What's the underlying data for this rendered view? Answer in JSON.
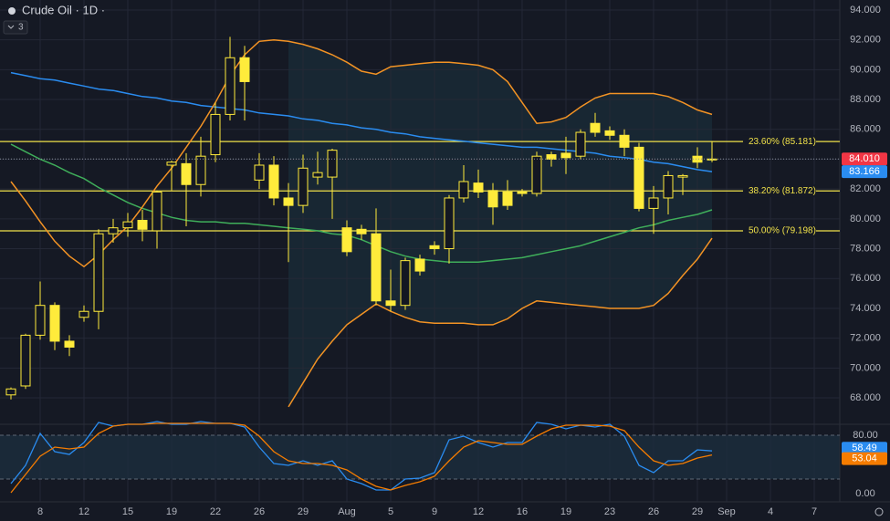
{
  "chart_data": [
    {
      "type": "candlestick",
      "title": "Crude Oil · 1D ·",
      "indicator_count": "3",
      "open": [
        68.2,
        68.8,
        72.2,
        74.2,
        71.8,
        73.4,
        73.8,
        79.0,
        79.4,
        79.9,
        79.2,
        83.6,
        83.7,
        82.3,
        84.3,
        87.0,
        90.8,
        82.6,
        83.6,
        81.4,
        80.9,
        82.8,
        82.8,
        79.4,
        79.3,
        79.0,
        74.5,
        74.2,
        77.3,
        78.2,
        78.0,
        81.4,
        82.4,
        81.9,
        81.8,
        81.8,
        81.7,
        84.3,
        84.4,
        84.2,
        86.4,
        85.9,
        85.6,
        84.8,
        80.7,
        81.4,
        82.8,
        84.2,
        84.0
      ],
      "high": [
        68.7,
        72.3,
        75.8,
        74.4,
        72.2,
        74.2,
        79.3,
        80.0,
        80.4,
        80.6,
        81.9,
        83.9,
        84.4,
        85.5,
        87.8,
        92.2,
        91.6,
        84.4,
        84.2,
        82.4,
        84.3,
        84.5,
        84.7,
        79.9,
        79.6,
        80.7,
        76.6,
        77.4,
        77.6,
        78.5,
        81.6,
        83.6,
        83.3,
        82.4,
        82.6,
        82.0,
        84.5,
        84.5,
        85.5,
        86.0,
        87.1,
        86.2,
        86.0,
        85.1,
        82.2,
        83.2,
        83.0,
        84.8,
        85.2
      ],
      "low": [
        67.9,
        68.6,
        71.9,
        71.2,
        70.8,
        73.1,
        72.6,
        78.4,
        78.8,
        78.5,
        78.0,
        81.9,
        79.5,
        81.5,
        83.8,
        86.6,
        86.6,
        82.0,
        80.9,
        77.1,
        80.4,
        82.3,
        80.0,
        77.5,
        78.6,
        74.2,
        73.8,
        73.9,
        76.2,
        77.6,
        77.0,
        81.1,
        81.4,
        79.6,
        80.6,
        81.5,
        81.5,
        83.5,
        83.0,
        84.0,
        85.5,
        85.3,
        84.2,
        80.5,
        79.0,
        80.3,
        81.6,
        83.4,
        83.8
      ],
      "close": [
        68.6,
        72.2,
        74.2,
        71.8,
        71.4,
        73.8,
        79.0,
        79.4,
        79.8,
        79.3,
        81.8,
        83.8,
        82.3,
        84.2,
        87.0,
        90.8,
        89.2,
        83.6,
        81.4,
        80.9,
        83.4,
        83.1,
        84.6,
        77.8,
        79.0,
        74.5,
        74.2,
        77.2,
        76.5,
        78.0,
        81.4,
        82.5,
        81.8,
        80.8,
        80.9,
        81.7,
        84.2,
        84.0,
        84.1,
        85.8,
        85.8,
        85.6,
        84.8,
        80.7,
        81.4,
        82.9,
        82.9,
        83.8,
        84.01
      ],
      "close_label": "84.010",
      "up_color": "#131722",
      "down_color": "#ffeb3b",
      "border_color": "#ffeb3b",
      "lines": [
        {
          "color": "#2a8cf0",
          "last_label": "83.166",
          "values": [
            89.8,
            89.6,
            89.4,
            89.3,
            89.1,
            88.9,
            88.7,
            88.6,
            88.4,
            88.2,
            88.1,
            87.9,
            87.8,
            87.6,
            87.5,
            87.4,
            87.3,
            87.1,
            87.0,
            86.9,
            86.7,
            86.6,
            86.4,
            86.3,
            86.1,
            86.0,
            85.8,
            85.7,
            85.5,
            85.4,
            85.3,
            85.2,
            85.1,
            85.0,
            84.9,
            84.8,
            84.8,
            84.7,
            84.6,
            84.5,
            84.4,
            84.2,
            84.1,
            84.0,
            83.8,
            83.7,
            83.5,
            83.3,
            83.166
          ]
        },
        {
          "color": "#3fae5a",
          "values": [
            85.0,
            84.5,
            84.0,
            83.6,
            83.1,
            82.7,
            82.1,
            81.6,
            81.1,
            80.7,
            80.4,
            80.1,
            79.9,
            79.8,
            79.8,
            79.7,
            79.7,
            79.6,
            79.5,
            79.4,
            79.3,
            79.2,
            79.0,
            78.9,
            78.6,
            78.2,
            77.8,
            77.5,
            77.3,
            77.2,
            77.1,
            77.1,
            77.1,
            77.2,
            77.3,
            77.4,
            77.6,
            77.8,
            78.0,
            78.2,
            78.5,
            78.8,
            79.1,
            79.4,
            79.6,
            79.9,
            80.1,
            80.3,
            80.6
          ]
        },
        {
          "color": "#f39324",
          "values": [
            82.5,
            81.2,
            79.8,
            78.5,
            77.5,
            76.8,
            77.6,
            78.6,
            79.5,
            80.8,
            82.2,
            83.4,
            84.8,
            86.2,
            87.8,
            89.6,
            91.0,
            91.9,
            92.0,
            91.9,
            91.7,
            91.4,
            91.0,
            90.5,
            89.9,
            89.7,
            90.2,
            90.3,
            90.4,
            90.5,
            90.5,
            90.4,
            90.3,
            90.0,
            89.2,
            87.8,
            86.4,
            86.5,
            86.8,
            87.5,
            88.1,
            88.4,
            88.4,
            88.4,
            88.4,
            88.2,
            87.8,
            87.3,
            87.0
          ]
        },
        {
          "color": "#f39324",
          "values": [
            null,
            null,
            null,
            null,
            null,
            null,
            null,
            null,
            null,
            null,
            null,
            null,
            null,
            null,
            null,
            null,
            null,
            null,
            null,
            67.4,
            69.0,
            70.6,
            71.8,
            72.9,
            73.6,
            74.3,
            73.8,
            73.4,
            73.1,
            73.0,
            73.0,
            73.0,
            72.9,
            72.9,
            73.3,
            74.0,
            74.5,
            74.4,
            74.3,
            74.2,
            74.1,
            74.0,
            74.0,
            74.0,
            74.2,
            75.0,
            76.2,
            77.3,
            78.7
          ]
        }
      ],
      "fib_color": "#f0e14a",
      "fib_levels": [
        {
          "label": "23.60% (85.181)",
          "value": 85.181
        },
        {
          "label": "38.20% (81.872)",
          "value": 81.872
        },
        {
          "label": "50.00% (79.198)",
          "value": 79.198
        }
      ],
      "xlim": [
        -0.75,
        56.75
      ],
      "ylim": [
        66.23,
        94.67
      ],
      "yticks": [
        {
          "value": 94,
          "label": "94.000"
        },
        {
          "value": 92,
          "label": "92.000"
        },
        {
          "value": 90,
          "label": "90.000"
        },
        {
          "value": 88,
          "label": "88.000"
        },
        {
          "value": 86,
          "label": "86.000"
        },
        {
          "value": 84,
          "label": "84.000"
        },
        {
          "value": 82,
          "label": "82.000"
        },
        {
          "value": 80,
          "label": "80.000"
        },
        {
          "value": 78,
          "label": "78.000"
        },
        {
          "value": 76,
          "label": "76.000"
        },
        {
          "value": 74,
          "label": "74.000"
        },
        {
          "value": 72,
          "label": "72.000"
        },
        {
          "value": 70,
          "label": "70.000"
        },
        {
          "value": 68,
          "label": "68.000"
        }
      ],
      "xticks": [
        {
          "value": 2,
          "label": "8"
        },
        {
          "value": 5,
          "label": "12"
        },
        {
          "value": 8,
          "label": "15"
        },
        {
          "value": 11,
          "label": "19"
        },
        {
          "value": 14,
          "label": "22"
        },
        {
          "value": 17,
          "label": "26"
        },
        {
          "value": 20,
          "label": "29"
        },
        {
          "value": 23,
          "label": "Aug"
        },
        {
          "value": 26,
          "label": "5"
        },
        {
          "value": 29,
          "label": "9"
        },
        {
          "value": 32,
          "label": "12"
        },
        {
          "value": 35,
          "label": "16"
        },
        {
          "value": 38,
          "label": "19"
        },
        {
          "value": 41,
          "label": "23"
        },
        {
          "value": 44,
          "label": "26"
        },
        {
          "value": 47,
          "label": "29"
        },
        {
          "value": 49,
          "label": "Sep"
        },
        {
          "value": 52,
          "label": "4"
        },
        {
          "value": 55,
          "label": "7"
        }
      ],
      "grid": true
    },
    {
      "type": "oscillator",
      "series": [
        {
          "color": "#2a8cf0",
          "last_label": "58.49",
          "values": [
            13.8,
            38.8,
            82.5,
            57.5,
            53.8,
            70,
            97.5,
            92.5,
            95,
            95,
            98.8,
            95,
            95,
            98.8,
            96.3,
            96.3,
            91.3,
            63.8,
            41.3,
            38.8,
            45,
            38.8,
            45,
            20,
            13.8,
            5,
            5,
            20,
            21.3,
            28.8,
            73.8,
            78.8,
            70,
            63.8,
            70,
            70,
            97.5,
            95,
            88.8,
            93.8,
            91.3,
            95,
            78.8,
            38.8,
            28.8,
            45,
            45,
            60,
            58.49
          ]
        },
        {
          "color": "#f57c00",
          "last_label": "53.04",
          "values": [
            1.3,
            26.3,
            51.3,
            63.8,
            61.3,
            63.8,
            82.5,
            92.5,
            95,
            95,
            96.3,
            96.3,
            96.3,
            96.3,
            96.3,
            96.3,
            93.8,
            78.8,
            57.5,
            45,
            41.3,
            41.3,
            38.8,
            32.5,
            20,
            10,
            5,
            11.3,
            16.3,
            23.8,
            45,
            63.8,
            72.5,
            70,
            67.5,
            67.5,
            78.8,
            88.8,
            93.8,
            93.8,
            93.8,
            92.5,
            86.3,
            63.8,
            45,
            38.8,
            41.3,
            48.8,
            53.04
          ]
        }
      ],
      "levels": [
        80,
        20
      ],
      "ylim": [
        -11.25,
        95
      ],
      "yticks": [
        {
          "value": 80,
          "label": "80.00"
        },
        {
          "value": 0,
          "label": "0.00"
        }
      ]
    }
  ]
}
